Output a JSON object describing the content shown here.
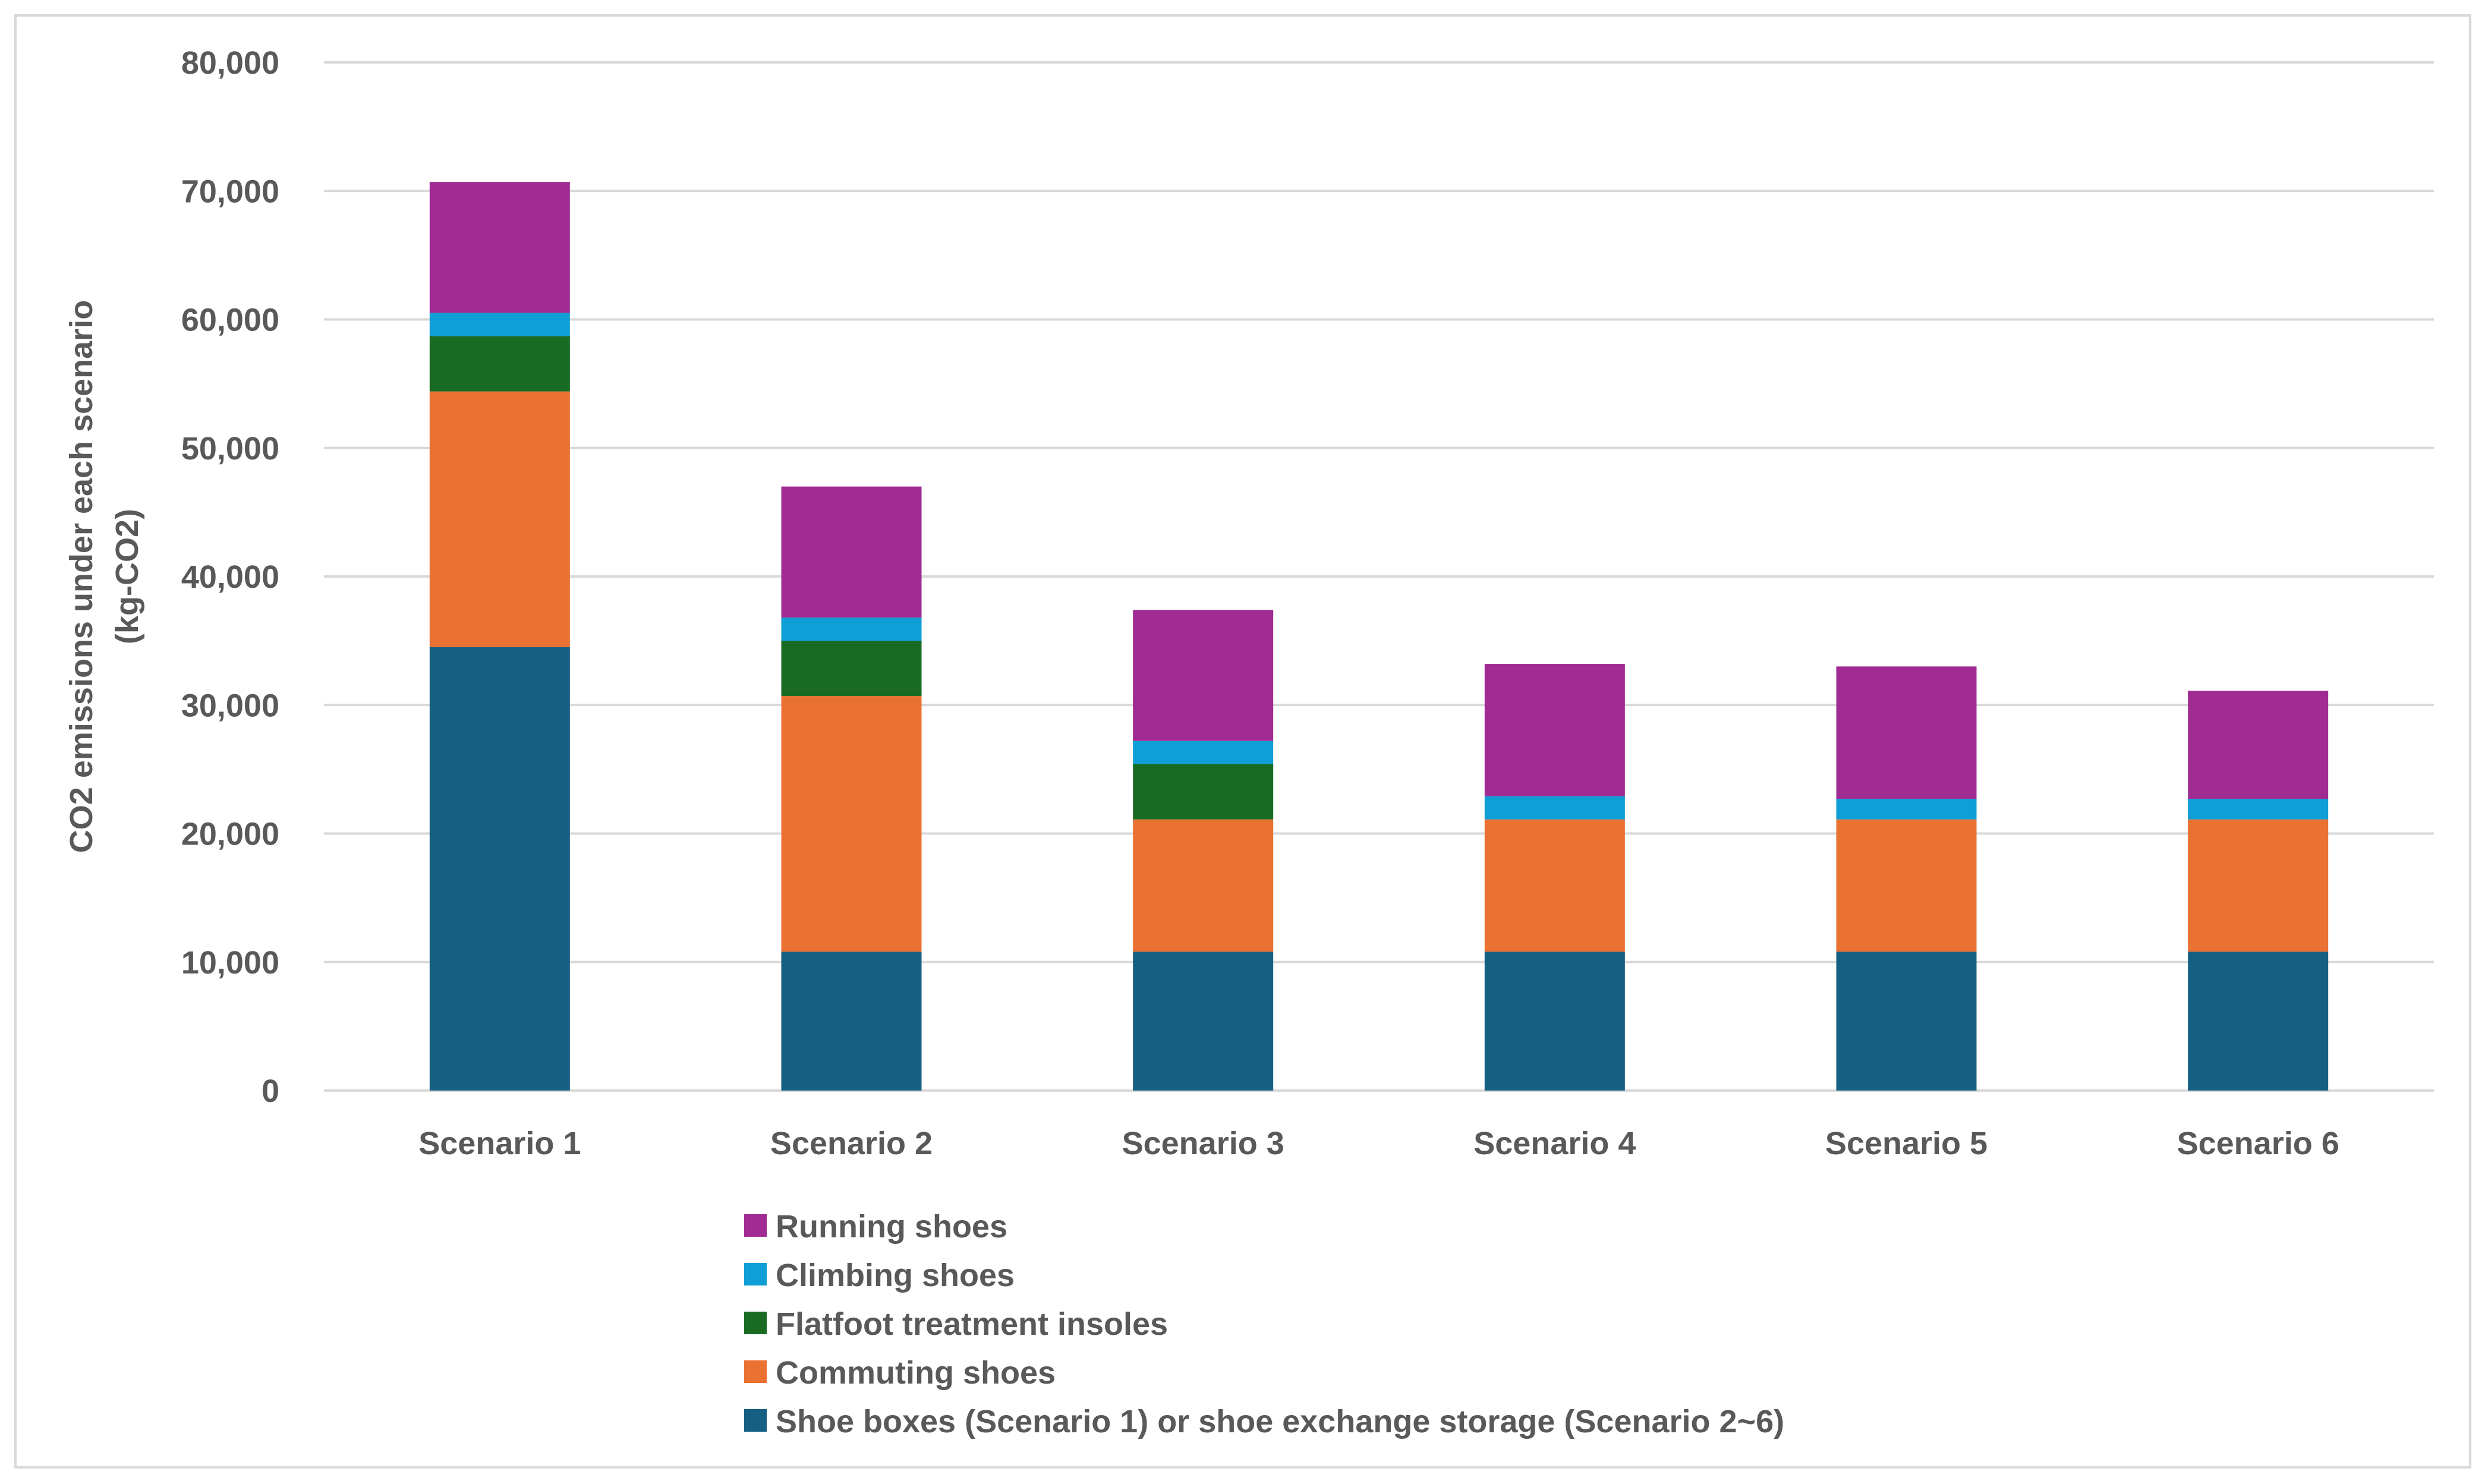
{
  "chart_data": {
    "type": "bar",
    "stacked": true,
    "title": "",
    "xlabel": "",
    "ylabel": "CO2 emissions under each scenario",
    "ylabel_line2": "(kg-CO2)",
    "ylim": [
      0,
      80000
    ],
    "yticks": [
      0,
      10000,
      20000,
      30000,
      40000,
      50000,
      60000,
      70000,
      80000
    ],
    "ytick_labels": [
      "0",
      "10,000",
      "20,000",
      "30,000",
      "40,000",
      "50,000",
      "60,000",
      "70,000",
      "80,000"
    ],
    "grid": true,
    "legend_position": "bottom",
    "categories": [
      "Scenario 1",
      "Scenario 2",
      "Scenario 3",
      "Scenario 4",
      "Scenario 5",
      "Scenario 6"
    ],
    "series": [
      {
        "name": "Shoe boxes (Scenario 1) or shoe exchange storage (Scenario 2~6)",
        "color": "#156082",
        "values": [
          34500,
          10800,
          10800,
          10800,
          10800,
          10800
        ]
      },
      {
        "name": "Commuting shoes",
        "color": "#E97132",
        "values": [
          19900,
          19900,
          10300,
          10300,
          10300,
          10300
        ]
      },
      {
        "name": "Flatfoot treatment insoles",
        "color": "#196B24",
        "values": [
          4300,
          4300,
          4300,
          0,
          0,
          0
        ]
      },
      {
        "name": "Climbing shoes",
        "color": "#0F9ED5",
        "values": [
          1800,
          1800,
          1800,
          1800,
          1600,
          1600
        ]
      },
      {
        "name": "Running shoes",
        "color": "#A02B93",
        "values": [
          10200,
          10200,
          10200,
          10300,
          10300,
          8400
        ]
      }
    ]
  }
}
